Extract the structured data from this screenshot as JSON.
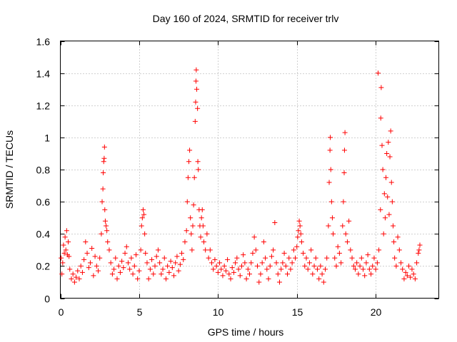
{
  "chart_data": {
    "type": "scatter",
    "title": "Day 160 of 2024, SRMTID for receiver trlv",
    "xlabel": "GPS time / hours",
    "ylabel": "SRMTID / TECUs",
    "xlim": [
      0,
      24
    ],
    "ylim": [
      0,
      1.6
    ],
    "x_ticks": [
      0,
      5,
      10,
      15,
      20
    ],
    "x_tick_labels": [
      "0",
      "5",
      "10",
      "15",
      "20"
    ],
    "y_ticks": [
      0,
      0.2,
      0.4,
      0.6,
      0.8,
      1.0,
      1.2,
      1.4,
      1.6
    ],
    "y_tick_labels": [
      "0",
      "0.2",
      "0.4",
      "0.6",
      "0.8",
      "1",
      "1.2",
      "1.4",
      "1.6"
    ],
    "grid": true,
    "marker": "+",
    "series": [
      {
        "name": "SRMTID",
        "color": "#ff0000",
        "points": [
          [
            0.05,
            0.25
          ],
          [
            0.1,
            0.15
          ],
          [
            0.15,
            0.22
          ],
          [
            0.2,
            0.33
          ],
          [
            0.25,
            0.28
          ],
          [
            0.3,
            0.38
          ],
          [
            0.35,
            0.3
          ],
          [
            0.4,
            0.42
          ],
          [
            0.45,
            0.27
          ],
          [
            0.5,
            0.35
          ],
          [
            0.55,
            0.26
          ],
          [
            0.6,
            0.18
          ],
          [
            0.7,
            0.12
          ],
          [
            0.8,
            0.15
          ],
          [
            0.9,
            0.1
          ],
          [
            1.0,
            0.13
          ],
          [
            1.1,
            0.17
          ],
          [
            1.2,
            0.12
          ],
          [
            1.3,
            0.2
          ],
          [
            1.4,
            0.16
          ],
          [
            1.5,
            0.24
          ],
          [
            1.6,
            0.35
          ],
          [
            1.7,
            0.28
          ],
          [
            1.8,
            0.19
          ],
          [
            1.9,
            0.22
          ],
          [
            2.0,
            0.31
          ],
          [
            2.1,
            0.14
          ],
          [
            2.2,
            0.26
          ],
          [
            2.3,
            0.2
          ],
          [
            2.4,
            0.17
          ],
          [
            2.5,
            0.25
          ],
          [
            2.6,
            0.4
          ],
          [
            2.65,
            0.6
          ],
          [
            2.7,
            0.68
          ],
          [
            2.72,
            0.78
          ],
          [
            2.75,
            0.85
          ],
          [
            2.78,
            0.87
          ],
          [
            2.8,
            0.94
          ],
          [
            2.82,
            0.55
          ],
          [
            2.85,
            0.48
          ],
          [
            2.9,
            0.45
          ],
          [
            2.95,
            0.42
          ],
          [
            3.0,
            0.35
          ],
          [
            3.1,
            0.3
          ],
          [
            3.2,
            0.22
          ],
          [
            3.3,
            0.15
          ],
          [
            3.4,
            0.18
          ],
          [
            3.5,
            0.25
          ],
          [
            3.6,
            0.12
          ],
          [
            3.7,
            0.2
          ],
          [
            3.8,
            0.16
          ],
          [
            3.9,
            0.23
          ],
          [
            4.0,
            0.19
          ],
          [
            4.1,
            0.28
          ],
          [
            4.2,
            0.32
          ],
          [
            4.3,
            0.22
          ],
          [
            4.4,
            0.18
          ],
          [
            4.5,
            0.25
          ],
          [
            4.6,
            0.15
          ],
          [
            4.7,
            0.2
          ],
          [
            4.8,
            0.27
          ],
          [
            4.9,
            0.12
          ],
          [
            5.0,
            0.17
          ],
          [
            5.1,
            0.3
          ],
          [
            5.15,
            0.45
          ],
          [
            5.2,
            0.5
          ],
          [
            5.25,
            0.55
          ],
          [
            5.3,
            0.52
          ],
          [
            5.35,
            0.4
          ],
          [
            5.4,
            0.28
          ],
          [
            5.5,
            0.22
          ],
          [
            5.6,
            0.12
          ],
          [
            5.7,
            0.18
          ],
          [
            5.8,
            0.24
          ],
          [
            5.9,
            0.15
          ],
          [
            6.0,
            0.2
          ],
          [
            6.1,
            0.26
          ],
          [
            6.2,
            0.3
          ],
          [
            6.3,
            0.22
          ],
          [
            6.4,
            0.15
          ],
          [
            6.5,
            0.18
          ],
          [
            6.6,
            0.25
          ],
          [
            6.7,
            0.12
          ],
          [
            6.8,
            0.2
          ],
          [
            6.9,
            0.16
          ],
          [
            7.0,
            0.23
          ],
          [
            7.1,
            0.19
          ],
          [
            7.2,
            0.14
          ],
          [
            7.3,
            0.22
          ],
          [
            7.4,
            0.26
          ],
          [
            7.5,
            0.17
          ],
          [
            7.6,
            0.21
          ],
          [
            7.7,
            0.28
          ],
          [
            7.8,
            0.24
          ],
          [
            7.9,
            0.35
          ],
          [
            8.0,
            0.42
          ],
          [
            8.05,
            0.6
          ],
          [
            8.1,
            0.75
          ],
          [
            8.15,
            0.85
          ],
          [
            8.2,
            0.92
          ],
          [
            8.25,
            0.5
          ],
          [
            8.3,
            0.4
          ],
          [
            8.35,
            0.3
          ],
          [
            8.4,
            0.45
          ],
          [
            8.45,
            0.58
          ],
          [
            8.5,
            0.75
          ],
          [
            8.55,
            1.1
          ],
          [
            8.58,
            1.22
          ],
          [
            8.6,
            1.35
          ],
          [
            8.62,
            1.42
          ],
          [
            8.65,
            1.3
          ],
          [
            8.7,
            1.18
          ],
          [
            8.72,
            0.85
          ],
          [
            8.75,
            0.8
          ],
          [
            8.8,
            0.55
          ],
          [
            8.85,
            0.45
          ],
          [
            8.9,
            0.38
          ],
          [
            8.95,
            0.5
          ],
          [
            9.0,
            0.55
          ],
          [
            9.05,
            0.45
          ],
          [
            9.1,
            0.35
          ],
          [
            9.2,
            0.3
          ],
          [
            9.3,
            0.4
          ],
          [
            9.4,
            0.25
          ],
          [
            9.5,
            0.3
          ],
          [
            9.6,
            0.22
          ],
          [
            9.7,
            0.18
          ],
          [
            9.8,
            0.24
          ],
          [
            9.9,
            0.2
          ],
          [
            10.0,
            0.16
          ],
          [
            10.1,
            0.22
          ],
          [
            10.2,
            0.18
          ],
          [
            10.3,
            0.14
          ],
          [
            10.4,
            0.2
          ],
          [
            10.5,
            0.17
          ],
          [
            10.6,
            0.24
          ],
          [
            10.7,
            0.15
          ],
          [
            10.8,
            0.12
          ],
          [
            10.9,
            0.19
          ],
          [
            11.0,
            0.16
          ],
          [
            11.1,
            0.22
          ],
          [
            11.2,
            0.25
          ],
          [
            11.3,
            0.18
          ],
          [
            11.4,
            0.14
          ],
          [
            11.5,
            0.2
          ],
          [
            11.6,
            0.27
          ],
          [
            11.7,
            0.22
          ],
          [
            11.8,
            0.12
          ],
          [
            11.9,
            0.18
          ],
          [
            12.0,
            0.15
          ],
          [
            12.1,
            0.22
          ],
          [
            12.2,
            0.28
          ],
          [
            12.3,
            0.38
          ],
          [
            12.4,
            0.3
          ],
          [
            12.5,
            0.2
          ],
          [
            12.6,
            0.1
          ],
          [
            12.7,
            0.15
          ],
          [
            12.8,
            0.22
          ],
          [
            12.9,
            0.35
          ],
          [
            13.0,
            0.25
          ],
          [
            13.1,
            0.18
          ],
          [
            13.2,
            0.12
          ],
          [
            13.3,
            0.2
          ],
          [
            13.4,
            0.26
          ],
          [
            13.5,
            0.3
          ],
          [
            13.6,
            0.47
          ],
          [
            13.7,
            0.22
          ],
          [
            13.8,
            0.15
          ],
          [
            13.9,
            0.1
          ],
          [
            14.0,
            0.18
          ],
          [
            14.1,
            0.22
          ],
          [
            14.2,
            0.28
          ],
          [
            14.3,
            0.2
          ],
          [
            14.4,
            0.15
          ],
          [
            14.5,
            0.25
          ],
          [
            14.6,
            0.18
          ],
          [
            14.7,
            0.22
          ],
          [
            14.8,
            0.3
          ],
          [
            14.9,
            0.25
          ],
          [
            15.0,
            0.32
          ],
          [
            15.05,
            0.38
          ],
          [
            15.1,
            0.42
          ],
          [
            15.15,
            0.48
          ],
          [
            15.2,
            0.45
          ],
          [
            15.25,
            0.4
          ],
          [
            15.3,
            0.35
          ],
          [
            15.4,
            0.28
          ],
          [
            15.5,
            0.2
          ],
          [
            15.6,
            0.25
          ],
          [
            15.7,
            0.18
          ],
          [
            15.8,
            0.22
          ],
          [
            15.9,
            0.3
          ],
          [
            16.0,
            0.15
          ],
          [
            16.1,
            0.2
          ],
          [
            16.2,
            0.25
          ],
          [
            16.3,
            0.18
          ],
          [
            16.4,
            0.12
          ],
          [
            16.5,
            0.2
          ],
          [
            16.6,
            0.15
          ],
          [
            16.7,
            0.1
          ],
          [
            16.8,
            0.18
          ],
          [
            16.9,
            0.25
          ],
          [
            17.0,
            0.45
          ],
          [
            17.05,
            0.72
          ],
          [
            17.1,
            0.92
          ],
          [
            17.12,
            1.0
          ],
          [
            17.15,
            0.8
          ],
          [
            17.2,
            0.6
          ],
          [
            17.25,
            0.5
          ],
          [
            17.3,
            0.4
          ],
          [
            17.4,
            0.25
          ],
          [
            17.5,
            0.2
          ],
          [
            17.6,
            0.32
          ],
          [
            17.7,
            0.28
          ],
          [
            17.8,
            0.22
          ],
          [
            17.9,
            0.45
          ],
          [
            17.95,
            0.6
          ],
          [
            18.0,
            0.78
          ],
          [
            18.02,
            0.92
          ],
          [
            18.05,
            1.03
          ],
          [
            18.1,
            0.4
          ],
          [
            18.2,
            0.35
          ],
          [
            18.3,
            0.48
          ],
          [
            18.4,
            0.3
          ],
          [
            18.5,
            0.25
          ],
          [
            18.6,
            0.2
          ],
          [
            18.7,
            0.18
          ],
          [
            18.8,
            0.22
          ],
          [
            18.9,
            0.15
          ],
          [
            19.0,
            0.2
          ],
          [
            19.1,
            0.25
          ],
          [
            19.2,
            0.18
          ],
          [
            19.3,
            0.14
          ],
          [
            19.4,
            0.22
          ],
          [
            19.5,
            0.27
          ],
          [
            19.6,
            0.18
          ],
          [
            19.7,
            0.15
          ],
          [
            19.8,
            0.2
          ],
          [
            19.9,
            0.25
          ],
          [
            20.0,
            0.18
          ],
          [
            20.1,
            0.22
          ],
          [
            20.15,
            1.4
          ],
          [
            20.2,
            0.3
          ],
          [
            20.3,
            0.55
          ],
          [
            20.32,
            1.12
          ],
          [
            20.35,
            1.31
          ],
          [
            20.4,
            0.95
          ],
          [
            20.45,
            0.8
          ],
          [
            20.5,
            0.4
          ],
          [
            20.55,
            0.65
          ],
          [
            20.6,
            0.5
          ],
          [
            20.65,
            0.75
          ],
          [
            20.7,
            0.9
          ],
          [
            20.75,
            0.63
          ],
          [
            20.8,
            0.97
          ],
          [
            20.85,
            0.52
          ],
          [
            20.9,
            0.88
          ],
          [
            20.95,
            1.04
          ],
          [
            21.0,
            0.72
          ],
          [
            21.05,
            0.6
          ],
          [
            21.1,
            0.45
          ],
          [
            21.15,
            0.35
          ],
          [
            21.2,
            0.25
          ],
          [
            21.3,
            0.2
          ],
          [
            21.4,
            0.38
          ],
          [
            21.5,
            0.3
          ],
          [
            21.6,
            0.22
          ],
          [
            21.7,
            0.18
          ],
          [
            21.8,
            0.12
          ],
          [
            21.9,
            0.16
          ],
          [
            22.0,
            0.14
          ],
          [
            22.1,
            0.2
          ],
          [
            22.2,
            0.13
          ],
          [
            22.3,
            0.18
          ],
          [
            22.4,
            0.15
          ],
          [
            22.5,
            0.12
          ],
          [
            22.6,
            0.22
          ],
          [
            22.7,
            0.28
          ],
          [
            22.75,
            0.3
          ],
          [
            22.8,
            0.33
          ]
        ]
      }
    ]
  }
}
